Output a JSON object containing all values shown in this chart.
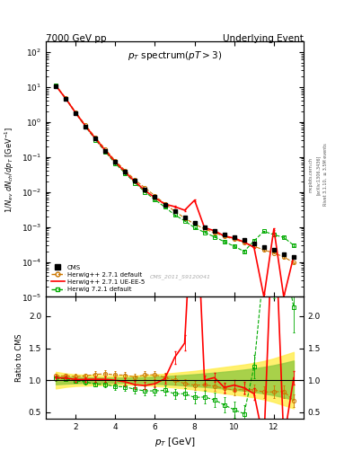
{
  "title_left": "7000 GeV pp",
  "title_right": "Underlying Event",
  "plot_title": "p_{T} spectrum (pT > 3)",
  "xlabel": "p_{T} [GeV]",
  "ylabel_main": "1/N_{ev} dN_{ch} / dp_{T} [GeV^{-1}]",
  "ylabel_ratio": "Ratio to CMS",
  "watermark": "CMS_2011_S9120041",
  "xlim": [
    0.5,
    13.5
  ],
  "ylim_main": [
    1e-05,
    200
  ],
  "ylim_ratio": [
    0.4,
    2.3
  ],
  "cms_pt": [
    1.0,
    1.5,
    2.0,
    2.5,
    3.0,
    3.5,
    4.0,
    4.5,
    5.0,
    5.5,
    6.0,
    6.5,
    7.0,
    7.5,
    8.0,
    8.5,
    9.0,
    9.5,
    10.0,
    10.5,
    11.0,
    11.5,
    12.0,
    12.5,
    13.0
  ],
  "cms_val": [
    10.5,
    4.5,
    1.8,
    0.75,
    0.33,
    0.15,
    0.072,
    0.038,
    0.021,
    0.012,
    0.0072,
    0.0044,
    0.0028,
    0.0019,
    0.0013,
    0.00095,
    0.00075,
    0.00062,
    0.00052,
    0.00042,
    0.00033,
    0.00027,
    0.00022,
    0.00017,
    0.00014
  ],
  "cms_err": [
    0.3,
    0.15,
    0.06,
    0.025,
    0.011,
    0.005,
    0.0025,
    0.0013,
    0.0007,
    0.0004,
    0.00025,
    0.00015,
    0.0001,
    7e-05,
    5e-05,
    4e-05,
    3e-05,
    2.5e-05,
    2e-05,
    1.7e-05,
    1.3e-05,
    1e-05,
    8e-06,
    6e-06,
    5e-06
  ],
  "hwpp271d_pt": [
    1.0,
    1.5,
    2.0,
    2.5,
    3.0,
    3.5,
    4.0,
    4.5,
    5.0,
    5.5,
    6.0,
    6.5,
    7.0,
    7.5,
    8.0,
    8.5,
    9.0,
    9.5,
    10.0,
    10.5,
    11.0,
    11.5,
    12.0,
    12.5,
    13.0
  ],
  "hwpp271d_val": [
    11.2,
    4.8,
    1.9,
    0.8,
    0.36,
    0.165,
    0.078,
    0.041,
    0.022,
    0.013,
    0.0078,
    0.0046,
    0.0028,
    0.0018,
    0.0012,
    0.00088,
    0.00068,
    0.00054,
    0.00044,
    0.00036,
    0.00028,
    0.00022,
    0.00018,
    0.00014,
    9.5e-05
  ],
  "hwpp271d_err": [
    0.35,
    0.15,
    0.06,
    0.025,
    0.012,
    0.006,
    0.003,
    0.0015,
    0.0008,
    0.00045,
    0.00028,
    0.00017,
    0.00011,
    7e-05,
    5e-05,
    3.8e-05,
    3e-05,
    2.4e-05,
    2e-05,
    1.6e-05,
    1.3e-05,
    1e-05,
    8e-06,
    6e-06,
    4e-06
  ],
  "hwpp271ue_pt": [
    1.0,
    1.5,
    2.0,
    2.5,
    3.0,
    3.5,
    4.0,
    4.5,
    5.0,
    5.5,
    6.0,
    6.5,
    7.0,
    7.5,
    8.0,
    8.5,
    9.0,
    9.5,
    10.0,
    10.5,
    11.0,
    11.5,
    12.0,
    12.5,
    13.0
  ],
  "hwpp271ue_val": [
    10.9,
    4.65,
    1.82,
    0.76,
    0.335,
    0.152,
    0.072,
    0.037,
    0.0195,
    0.011,
    0.0068,
    0.0045,
    0.0038,
    0.003,
    0.0058,
    0.00095,
    0.00078,
    0.00055,
    0.00048,
    0.00037,
    0.00026,
    1e-05,
    0.00088,
    1e-05,
    0.000145
  ],
  "hwpp271ue_err": [
    0.32,
    0.14,
    0.055,
    0.023,
    0.01,
    0.005,
    0.0025,
    0.0013,
    0.0007,
    0.0004,
    0.00024,
    0.00018,
    0.00016,
    0.00014,
    0.00028,
    4e-05,
    3e-05,
    2.2e-05,
    2e-05,
    1.6e-05,
    1.2e-05,
    2e-06,
    4e-05,
    2e-06,
    6e-06
  ],
  "hw721d_pt": [
    1.0,
    1.5,
    2.0,
    2.5,
    3.0,
    3.5,
    4.0,
    4.5,
    5.0,
    5.5,
    6.0,
    6.5,
    7.0,
    7.5,
    8.0,
    8.5,
    9.0,
    9.5,
    10.0,
    10.5,
    11.0,
    11.5,
    12.0,
    12.5,
    13.0
  ],
  "hw721d_val": [
    10.8,
    4.6,
    1.78,
    0.73,
    0.31,
    0.14,
    0.065,
    0.034,
    0.018,
    0.01,
    0.006,
    0.0037,
    0.0022,
    0.0015,
    0.00095,
    0.0007,
    0.00052,
    0.00038,
    0.00028,
    0.0002,
    0.0004,
    0.00075,
    0.0006,
    0.0005,
    0.0003
  ],
  "hw721d_err": [
    0.32,
    0.14,
    0.055,
    0.023,
    0.01,
    0.005,
    0.0023,
    0.0012,
    0.00065,
    0.00037,
    0.00022,
    0.00014,
    9e-05,
    6e-05,
    4e-05,
    3e-05,
    2.3e-05,
    1.7e-05,
    1.3e-05,
    1e-05,
    2e-05,
    4e-05,
    3.2e-05,
    2.7e-05,
    1.8e-05
  ],
  "ratio_hwpp271d": [
    1.067,
    1.067,
    1.056,
    1.067,
    1.091,
    1.1,
    1.083,
    1.079,
    1.048,
    1.083,
    1.083,
    1.045,
    1.0,
    0.947,
    0.923,
    0.926,
    0.907,
    0.871,
    0.846,
    0.857,
    0.848,
    0.815,
    0.818,
    0.824,
    0.679
  ],
  "ratio_hwpp271d_err": [
    0.04,
    0.04,
    0.04,
    0.04,
    0.05,
    0.05,
    0.055,
    0.055,
    0.055,
    0.06,
    0.06,
    0.065,
    0.07,
    0.07,
    0.07,
    0.075,
    0.075,
    0.08,
    0.08,
    0.085,
    0.09,
    0.09,
    0.095,
    0.1,
    0.1
  ],
  "ratio_hwpp271ue": [
    1.038,
    1.033,
    1.011,
    1.013,
    1.015,
    1.013,
    1.0,
    0.974,
    0.929,
    0.917,
    0.944,
    1.023,
    1.357,
    1.579,
    4.46,
    1.0,
    1.04,
    0.887,
    0.923,
    0.881,
    0.788,
    0.037,
    4.0,
    0.059,
    1.036
  ],
  "ratio_hwpp271ue_err": [
    0.035,
    0.035,
    0.035,
    0.035,
    0.04,
    0.04,
    0.045,
    0.05,
    0.055,
    0.06,
    0.06,
    0.075,
    0.1,
    0.12,
    0.5,
    0.07,
    0.07,
    0.08,
    0.085,
    0.09,
    0.09,
    0.01,
    0.5,
    0.01,
    0.1
  ],
  "ratio_hw721d": [
    1.029,
    1.022,
    0.989,
    0.973,
    0.939,
    0.933,
    0.903,
    0.895,
    0.857,
    0.833,
    0.833,
    0.841,
    0.786,
    0.789,
    0.731,
    0.737,
    0.693,
    0.613,
    0.538,
    0.476,
    1.212,
    2.778,
    2.727,
    2.941,
    2.143
  ],
  "ratio_hw721d_err": [
    0.035,
    0.035,
    0.035,
    0.04,
    0.04,
    0.045,
    0.05,
    0.055,
    0.06,
    0.065,
    0.07,
    0.075,
    0.08,
    0.085,
    0.09,
    0.1,
    0.11,
    0.12,
    0.13,
    0.14,
    0.18,
    0.45,
    0.45,
    0.55,
    0.4
  ],
  "colors": {
    "cms": "#000000",
    "hwpp271d": "#cc7700",
    "hwpp271ue": "#ff0000",
    "hw721d": "#00aa00"
  },
  "band_yellow_pt": [
    1.0,
    1.5,
    2.0,
    2.5,
    3.0,
    3.5,
    4.0,
    4.5,
    5.0,
    5.5,
    6.0,
    6.5,
    7.0,
    7.5,
    8.0,
    8.5,
    9.0,
    9.5,
    10.0,
    10.5,
    11.0,
    11.5,
    12.0,
    12.5,
    13.0
  ],
  "band_yellow_lo": [
    0.87,
    0.895,
    0.91,
    0.915,
    0.92,
    0.925,
    0.93,
    0.93,
    0.928,
    0.92,
    0.91,
    0.9,
    0.885,
    0.87,
    0.855,
    0.835,
    0.815,
    0.795,
    0.775,
    0.755,
    0.73,
    0.7,
    0.66,
    0.61,
    0.56
  ],
  "band_yellow_hi": [
    1.13,
    1.105,
    1.09,
    1.085,
    1.08,
    1.075,
    1.07,
    1.07,
    1.072,
    1.08,
    1.09,
    1.1,
    1.115,
    1.13,
    1.145,
    1.165,
    1.185,
    1.205,
    1.225,
    1.245,
    1.27,
    1.3,
    1.34,
    1.39,
    1.44
  ],
  "band_green_lo": [
    0.935,
    0.945,
    0.952,
    0.956,
    0.958,
    0.96,
    0.96,
    0.96,
    0.958,
    0.953,
    0.945,
    0.937,
    0.928,
    0.918,
    0.907,
    0.895,
    0.882,
    0.867,
    0.852,
    0.835,
    0.815,
    0.793,
    0.765,
    0.732,
    0.694
  ],
  "band_green_hi": [
    1.065,
    1.055,
    1.048,
    1.044,
    1.042,
    1.04,
    1.04,
    1.04,
    1.042,
    1.047,
    1.055,
    1.063,
    1.072,
    1.082,
    1.093,
    1.105,
    1.118,
    1.133,
    1.148,
    1.165,
    1.185,
    1.207,
    1.235,
    1.268,
    1.306
  ]
}
